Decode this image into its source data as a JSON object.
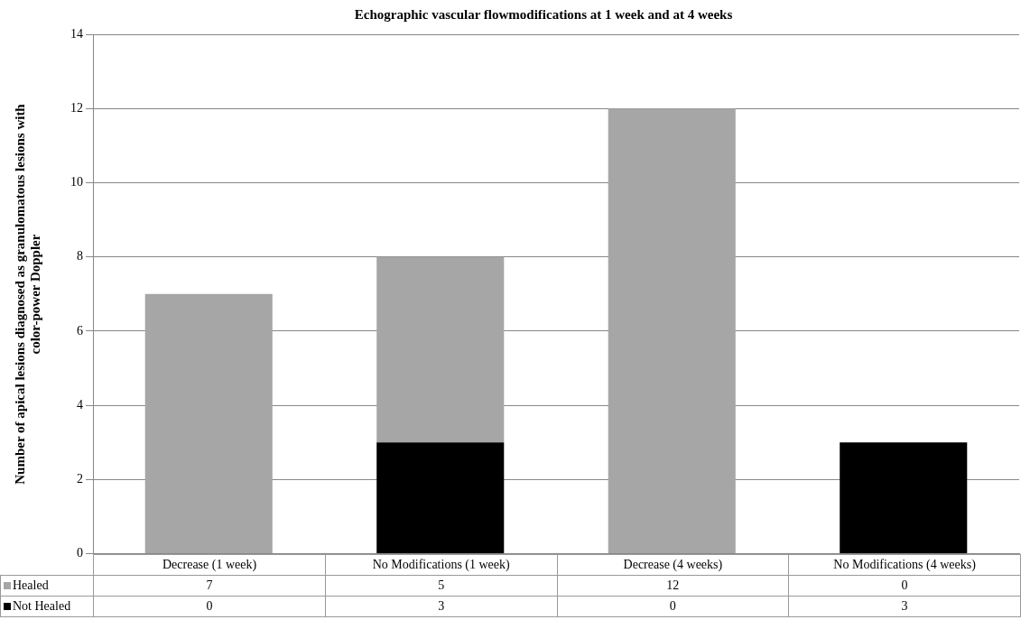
{
  "chart_data": {
    "type": "bar",
    "title": "Echographic vascular flowmodifications at 1 week and at 4 weeks",
    "ylabel": "Number of apical lesions diagnosed as granulomatous lesions with color-power Doppler",
    "categories": [
      "Decrease (1 week)",
      "No Modifications (1 week)",
      "Decrease (4 weeks)",
      "No Modifications  (4 weeks)"
    ],
    "series": [
      {
        "name": "Not Healed",
        "color": "#000000",
        "values": [
          0,
          3,
          0,
          3
        ]
      },
      {
        "name": "Healed",
        "color": "#a6a6a6",
        "values": [
          7,
          5,
          12,
          0
        ]
      }
    ],
    "stacked": true,
    "ylim": [
      0,
      14
    ],
    "yticks": [
      0,
      2,
      4,
      6,
      8,
      10,
      12,
      14
    ],
    "grid": "y",
    "legend": "bottom",
    "data_labels": true
  }
}
